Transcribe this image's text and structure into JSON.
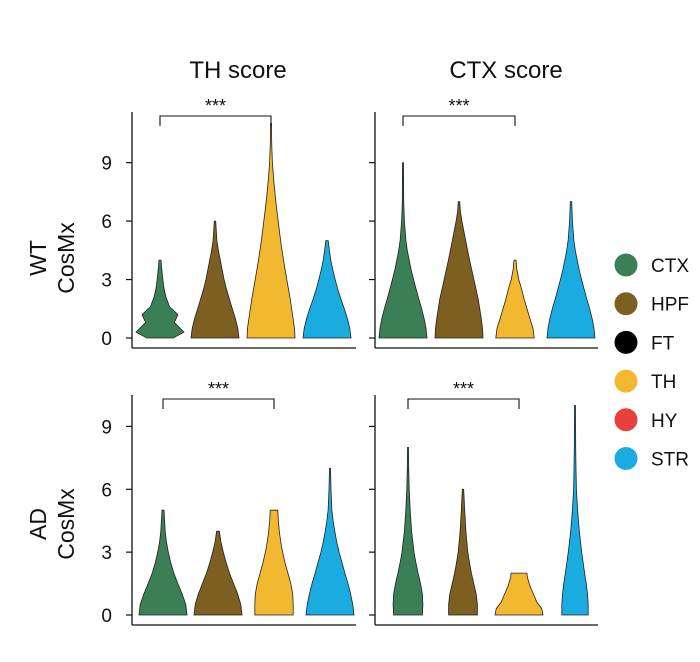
{
  "chart_data": {
    "type": "violin",
    "column_titles": [
      "TH score",
      "CTX score"
    ],
    "row_labels": [
      {
        "line1": "WT",
        "line2": "CosMx"
      },
      {
        "line1": "AD",
        "line2": "CosMx"
      }
    ],
    "y_ticks": [
      0,
      3,
      6,
      9
    ],
    "legend": [
      {
        "label": "CTX",
        "color": "#3a7f55"
      },
      {
        "label": "HPF",
        "color": "#7d5f22"
      },
      {
        "label": "FT",
        "color": "#000000"
      },
      {
        "label": "TH",
        "color": "#f2b830"
      },
      {
        "label": "HY",
        "color": "#e8413c"
      },
      {
        "label": "STR",
        "color": "#1aace0"
      }
    ],
    "panels": [
      {
        "row": "WT",
        "score": "TH score",
        "ylim": [
          0,
          11.6
        ],
        "significance": {
          "text": "***",
          "from": "CTX",
          "to": "TH"
        },
        "violins": [
          {
            "group": "CTX",
            "color": "#3a7f55",
            "max": 4.0,
            "profile": [
              [
                0,
                0.55
              ],
              [
                0.3,
                1.0
              ],
              [
                0.8,
                0.6
              ],
              [
                1.2,
                0.75
              ],
              [
                1.6,
                0.4
              ],
              [
                2.1,
                0.25
              ],
              [
                2.6,
                0.16
              ],
              [
                3.2,
                0.1
              ],
              [
                4.0,
                0.04
              ]
            ]
          },
          {
            "group": "HPF",
            "color": "#7d5f22",
            "max": 6.0,
            "profile": [
              [
                0,
                1.0
              ],
              [
                0.5,
                0.95
              ],
              [
                1.0,
                0.85
              ],
              [
                1.5,
                0.72
              ],
              [
                2.0,
                0.6
              ],
              [
                2.5,
                0.48
              ],
              [
                3.0,
                0.38
              ],
              [
                3.5,
                0.3
              ],
              [
                4.0,
                0.22
              ],
              [
                4.5,
                0.14
              ],
              [
                5.0,
                0.08
              ],
              [
                6.0,
                0.03
              ]
            ]
          },
          {
            "group": "TH",
            "color": "#f2b830",
            "max": 11.0,
            "profile": [
              [
                0,
                1.0
              ],
              [
                0.5,
                0.98
              ],
              [
                1.0,
                0.92
              ],
              [
                2.0,
                0.8
              ],
              [
                3.0,
                0.66
              ],
              [
                4.0,
                0.52
              ],
              [
                5.0,
                0.4
              ],
              [
                6.0,
                0.3
              ],
              [
                7.0,
                0.2
              ],
              [
                8.0,
                0.12
              ],
              [
                9.0,
                0.06
              ],
              [
                10.0,
                0.03
              ],
              [
                11.0,
                0.02
              ]
            ]
          },
          {
            "group": "STR",
            "color": "#1aace0",
            "max": 5.0,
            "profile": [
              [
                0,
                1.0
              ],
              [
                0.5,
                0.95
              ],
              [
                1.0,
                0.85
              ],
              [
                1.5,
                0.72
              ],
              [
                2.0,
                0.58
              ],
              [
                2.5,
                0.45
              ],
              [
                3.0,
                0.34
              ],
              [
                3.5,
                0.24
              ],
              [
                4.0,
                0.16
              ],
              [
                4.5,
                0.1
              ],
              [
                5.0,
                0.05
              ]
            ]
          }
        ]
      },
      {
        "row": "WT",
        "score": "CTX score",
        "ylim": [
          0,
          11.6
        ],
        "significance": {
          "text": "***",
          "from": "CTX",
          "to": "TH"
        },
        "violins": [
          {
            "group": "CTX",
            "color": "#3a7f55",
            "max": 9.0,
            "profile": [
              [
                0,
                1.0
              ],
              [
                0.5,
                0.96
              ],
              [
                1.0,
                0.88
              ],
              [
                1.5,
                0.78
              ],
              [
                2.0,
                0.66
              ],
              [
                2.5,
                0.55
              ],
              [
                3.0,
                0.44
              ],
              [
                3.5,
                0.34
              ],
              [
                4.0,
                0.26
              ],
              [
                4.5,
                0.18
              ],
              [
                5.0,
                0.12
              ],
              [
                6.0,
                0.06
              ],
              [
                7.0,
                0.03
              ],
              [
                9.0,
                0.02
              ]
            ]
          },
          {
            "group": "HPF",
            "color": "#7d5f22",
            "max": 7.0,
            "profile": [
              [
                0,
                1.0
              ],
              [
                0.5,
                0.98
              ],
              [
                1.0,
                0.93
              ],
              [
                2.0,
                0.8
              ],
              [
                3.0,
                0.62
              ],
              [
                4.0,
                0.44
              ],
              [
                5.0,
                0.28
              ],
              [
                5.5,
                0.2
              ],
              [
                6.0,
                0.12
              ],
              [
                6.5,
                0.06
              ],
              [
                7.0,
                0.03
              ]
            ]
          },
          {
            "group": "TH",
            "color": "#f2b830",
            "max": 4.0,
            "profile": [
              [
                0,
                0.8
              ],
              [
                0.5,
                0.75
              ],
              [
                1.0,
                0.62
              ],
              [
                1.5,
                0.5
              ],
              [
                2.0,
                0.38
              ],
              [
                2.5,
                0.28
              ],
              [
                3.0,
                0.16
              ],
              [
                3.5,
                0.08
              ],
              [
                4.0,
                0.04
              ]
            ]
          },
          {
            "group": "STR",
            "color": "#1aace0",
            "max": 7.0,
            "profile": [
              [
                0,
                1.0
              ],
              [
                0.5,
                0.96
              ],
              [
                1.0,
                0.88
              ],
              [
                1.5,
                0.78
              ],
              [
                2.0,
                0.66
              ],
              [
                2.5,
                0.55
              ],
              [
                3.0,
                0.44
              ],
              [
                3.5,
                0.34
              ],
              [
                4.0,
                0.26
              ],
              [
                4.5,
                0.18
              ],
              [
                5.0,
                0.12
              ],
              [
                6.0,
                0.06
              ],
              [
                7.0,
                0.03
              ]
            ]
          }
        ]
      },
      {
        "row": "AD",
        "score": "TH score",
        "ylim": [
          0,
          10.5
        ],
        "significance": {
          "text": "***",
          "from": "CTX",
          "to": "TH"
        },
        "violins": [
          {
            "group": "CTX",
            "color": "#3a7f55",
            "max": 5.0,
            "profile": [
              [
                0,
                1.0
              ],
              [
                0.5,
                0.95
              ],
              [
                1.0,
                0.8
              ],
              [
                1.5,
                0.62
              ],
              [
                2.0,
                0.45
              ],
              [
                2.5,
                0.32
              ],
              [
                3.0,
                0.22
              ],
              [
                3.5,
                0.14
              ],
              [
                4.0,
                0.09
              ],
              [
                5.0,
                0.04
              ]
            ]
          },
          {
            "group": "HPF",
            "color": "#7d5f22",
            "max": 4.0,
            "profile": [
              [
                0,
                1.0
              ],
              [
                0.5,
                0.95
              ],
              [
                1.0,
                0.82
              ],
              [
                1.5,
                0.65
              ],
              [
                2.0,
                0.48
              ],
              [
                2.5,
                0.34
              ],
              [
                3.0,
                0.22
              ],
              [
                3.5,
                0.12
              ],
              [
                4.0,
                0.06
              ]
            ]
          },
          {
            "group": "TH",
            "color": "#f2b830",
            "max": 5.0,
            "profile": [
              [
                0,
                0.8
              ],
              [
                0.5,
                0.8
              ],
              [
                1.0,
                0.78
              ],
              [
                1.5,
                0.7
              ],
              [
                2.0,
                0.58
              ],
              [
                2.5,
                0.46
              ],
              [
                3.0,
                0.36
              ],
              [
                3.5,
                0.28
              ],
              [
                4.0,
                0.22
              ],
              [
                4.5,
                0.18
              ],
              [
                5.0,
                0.16
              ]
            ]
          },
          {
            "group": "STR",
            "color": "#1aace0",
            "max": 7.0,
            "profile": [
              [
                0,
                1.0
              ],
              [
                0.5,
                0.95
              ],
              [
                1.0,
                0.86
              ],
              [
                1.5,
                0.75
              ],
              [
                2.0,
                0.62
              ],
              [
                2.5,
                0.5
              ],
              [
                3.0,
                0.38
              ],
              [
                3.5,
                0.28
              ],
              [
                4.0,
                0.2
              ],
              [
                4.5,
                0.13
              ],
              [
                5.0,
                0.08
              ],
              [
                6.0,
                0.04
              ],
              [
                7.0,
                0.02
              ]
            ]
          }
        ]
      },
      {
        "row": "AD",
        "score": "CTX score",
        "ylim": [
          0,
          10.5
        ],
        "significance": {
          "text": "***",
          "from": "CTX",
          "to": "TH"
        },
        "violins": [
          {
            "group": "CTX",
            "color": "#3a7f55",
            "max": 8.0,
            "profile": [
              [
                0,
                0.6
              ],
              [
                0.5,
                0.62
              ],
              [
                1.0,
                0.6
              ],
              [
                1.5,
                0.52
              ],
              [
                2.0,
                0.42
              ],
              [
                2.5,
                0.33
              ],
              [
                3.0,
                0.25
              ],
              [
                4.0,
                0.15
              ],
              [
                5.0,
                0.09
              ],
              [
                6.0,
                0.05
              ],
              [
                7.0,
                0.03
              ],
              [
                8.0,
                0.02
              ]
            ]
          },
          {
            "group": "HPF",
            "color": "#7d5f22",
            "max": 6.0,
            "profile": [
              [
                0,
                0.6
              ],
              [
                0.5,
                0.6
              ],
              [
                1.0,
                0.55
              ],
              [
                1.5,
                0.45
              ],
              [
                2.0,
                0.35
              ],
              [
                2.5,
                0.27
              ],
              [
                3.0,
                0.2
              ],
              [
                4.0,
                0.12
              ],
              [
                5.0,
                0.07
              ],
              [
                6.0,
                0.03
              ]
            ]
          },
          {
            "group": "TH",
            "color": "#f2b830",
            "max": 2.0,
            "profile": [
              [
                0,
                1.0
              ],
              [
                0.3,
                0.95
              ],
              [
                0.6,
                0.75
              ],
              [
                1.0,
                0.6
              ],
              [
                1.4,
                0.45
              ],
              [
                1.8,
                0.35
              ],
              [
                2.0,
                0.33
              ]
            ]
          },
          {
            "group": "STR",
            "color": "#1aace0",
            "max": 10.0,
            "profile": [
              [
                0,
                0.55
              ],
              [
                0.5,
                0.55
              ],
              [
                1.0,
                0.52
              ],
              [
                1.5,
                0.47
              ],
              [
                2.0,
                0.4
              ],
              [
                3.0,
                0.28
              ],
              [
                4.0,
                0.18
              ],
              [
                5.0,
                0.11
              ],
              [
                6.0,
                0.06
              ],
              [
                7.0,
                0.04
              ],
              [
                8.0,
                0.03
              ],
              [
                10.0,
                0.02
              ]
            ]
          }
        ]
      }
    ]
  }
}
